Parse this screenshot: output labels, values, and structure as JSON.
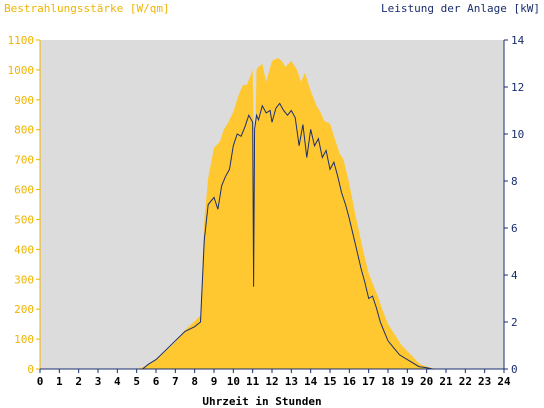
{
  "chart_data": {
    "type": "area",
    "ylabel_left": "Bestrahlungsstärke [W/qm]",
    "ylabel_right": "Leistung der Anlage [kW]",
    "xlabel": "Uhrzeit in Stunden",
    "xlim": [
      0,
      24
    ],
    "ylim_left": [
      0,
      1100
    ],
    "ylim_right": [
      0,
      14
    ],
    "x_ticks": [
      "0",
      "1",
      "2",
      "3",
      "4",
      "5",
      "6",
      "7",
      "8",
      "9",
      "10",
      "11",
      "12",
      "13",
      "14",
      "15",
      "16",
      "17",
      "18",
      "19",
      "20",
      "21",
      "22",
      "23",
      "24"
    ],
    "y_left_ticks": [
      "0",
      "100",
      "200",
      "300",
      "400",
      "500",
      "600",
      "700",
      "800",
      "900",
      "1000",
      "1100"
    ],
    "y_right_ticks": [
      "0",
      "2",
      "4",
      "6",
      "8",
      "10",
      "12",
      "14"
    ],
    "grid": false,
    "colors": {
      "irradiance": "#ffc830",
      "power": "#1a2e6e",
      "plot_bg": "#dcdcdc",
      "left_axis": "#f0b400",
      "right_axis": "#1a2e6e"
    },
    "series": [
      {
        "name": "Bestrahlungsstärke",
        "axis": "left",
        "style": "area",
        "x": [
          0,
          5,
          5.5,
          6,
          6.5,
          7,
          7.5,
          8,
          8.3,
          8.5,
          8.7,
          9,
          9.3,
          9.5,
          9.7,
          10,
          10.3,
          10.5,
          10.7,
          11,
          11.1,
          11.2,
          11.3,
          11.5,
          11.7,
          12,
          12.3,
          12.5,
          12.7,
          13,
          13.3,
          13.5,
          13.7,
          14,
          14.3,
          14.5,
          14.7,
          15,
          15.3,
          15.5,
          15.7,
          16,
          16.3,
          16.5,
          16.7,
          17,
          17.3,
          17.5,
          17.7,
          18,
          18.3,
          18.5,
          18.7,
          19,
          19.3,
          19.5,
          19.7,
          20,
          20.3,
          20.5,
          21,
          24
        ],
        "y": [
          0,
          0,
          10,
          30,
          60,
          90,
          130,
          160,
          180,
          500,
          640,
          740,
          760,
          800,
          820,
          860,
          920,
          950,
          950,
          1000,
          600,
          1000,
          1010,
          1020,
          960,
          1030,
          1040,
          1030,
          1010,
          1030,
          1000,
          960,
          990,
          930,
          880,
          860,
          830,
          820,
          760,
          720,
          700,
          620,
          520,
          460,
          400,
          320,
          270,
          240,
          200,
          150,
          120,
          100,
          80,
          60,
          40,
          25,
          15,
          8,
          3,
          0,
          0,
          0
        ]
      },
      {
        "name": "Leistung",
        "axis": "right",
        "style": "line",
        "x": [
          0,
          5.3,
          5.6,
          6,
          6.5,
          7,
          7.5,
          8,
          8.3,
          8.5,
          8.7,
          9,
          9.2,
          9.4,
          9.6,
          9.8,
          10,
          10.2,
          10.4,
          10.6,
          10.8,
          11,
          11.05,
          11.1,
          11.2,
          11.3,
          11.5,
          11.7,
          11.9,
          12,
          12.2,
          12.4,
          12.6,
          12.8,
          13,
          13.2,
          13.4,
          13.6,
          13.8,
          14,
          14.2,
          14.4,
          14.6,
          14.8,
          15,
          15.2,
          15.4,
          15.6,
          15.8,
          16,
          16.2,
          16.4,
          16.6,
          16.8,
          17,
          17.2,
          17.4,
          17.6,
          17.8,
          18,
          18.3,
          18.6,
          19,
          19.3,
          19.6,
          20,
          20.3,
          20.6,
          21,
          24
        ],
        "y": [
          0,
          0,
          0.2,
          0.4,
          0.8,
          1.2,
          1.6,
          1.8,
          2.0,
          5.5,
          7.0,
          7.3,
          6.8,
          7.8,
          8.2,
          8.5,
          9.5,
          10.0,
          9.9,
          10.3,
          10.8,
          10.5,
          3.5,
          10.2,
          10.8,
          10.6,
          11.2,
          10.9,
          11.0,
          10.5,
          11.1,
          11.3,
          11.0,
          10.8,
          11.0,
          10.7,
          9.5,
          10.4,
          9.0,
          10.2,
          9.5,
          9.8,
          9.0,
          9.3,
          8.5,
          8.8,
          8.2,
          7.5,
          7.0,
          6.4,
          5.7,
          5.0,
          4.3,
          3.7,
          3.0,
          3.1,
          2.6,
          2.0,
          1.6,
          1.2,
          0.9,
          0.6,
          0.4,
          0.25,
          0.1,
          0.05,
          0.0,
          0.0,
          0,
          0
        ]
      }
    ]
  }
}
